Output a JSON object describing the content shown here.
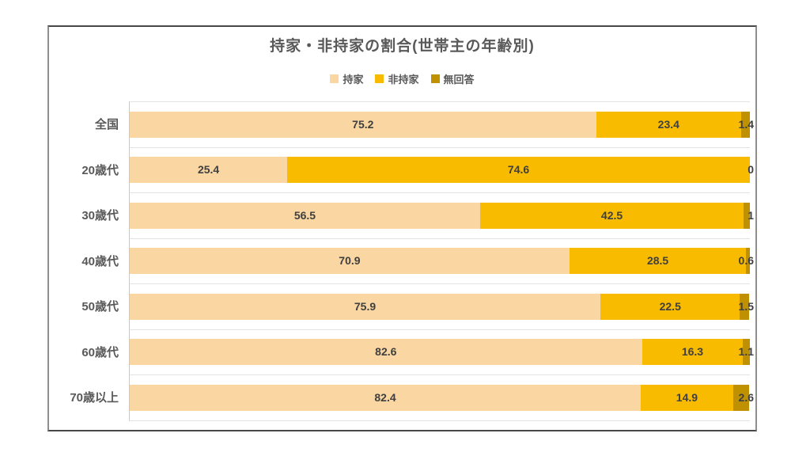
{
  "window": {
    "background": "#ffffff",
    "card_border_color": "#6e6e6e"
  },
  "chart_data": {
    "type": "bar",
    "orientation": "horizontal",
    "stacked": true,
    "title": "持家・非持家の割合(世帯主の年齢別)",
    "title_color": "#595959",
    "legend_position": "top",
    "legend": [
      {
        "label": "持家",
        "color": "#fad7a2"
      },
      {
        "label": "非持家",
        "color": "#f8bb00"
      },
      {
        "label": "無回答",
        "color": "#bf9000"
      }
    ],
    "categories": [
      "全国",
      "20歳代",
      "30歳代",
      "40歳代",
      "50歳代",
      "60歳代",
      "70歳以上"
    ],
    "series": [
      {
        "name": "持家",
        "color": "#fad7a2",
        "values": [
          75.2,
          25.4,
          56.5,
          70.9,
          75.9,
          82.6,
          82.4
        ]
      },
      {
        "name": "非持家",
        "color": "#f8bb00",
        "values": [
          23.4,
          74.6,
          42.5,
          28.5,
          22.5,
          16.3,
          14.9
        ]
      },
      {
        "name": "無回答",
        "color": "#bf9000",
        "values": [
          1.4,
          0,
          1,
          0.6,
          1.5,
          1.1,
          2.6
        ]
      }
    ],
    "value_labels": [
      [
        "75.2",
        "23.4",
        "1.4"
      ],
      [
        "25.4",
        "74.6",
        "0"
      ],
      [
        "56.5",
        "42.5",
        "1"
      ],
      [
        "70.9",
        "28.5",
        "0.6"
      ],
      [
        "75.9",
        "22.5",
        "1.5"
      ],
      [
        "82.6",
        "16.3",
        "1.1"
      ],
      [
        "82.4",
        "14.9",
        "2.6"
      ]
    ],
    "xlim": [
      0,
      100
    ],
    "grid": true,
    "gridline_color": "#e3e3e3",
    "axis_line_color": "#c9c9c9",
    "value_label_color": "#3f3f3f",
    "category_label_color": "#595959"
  }
}
